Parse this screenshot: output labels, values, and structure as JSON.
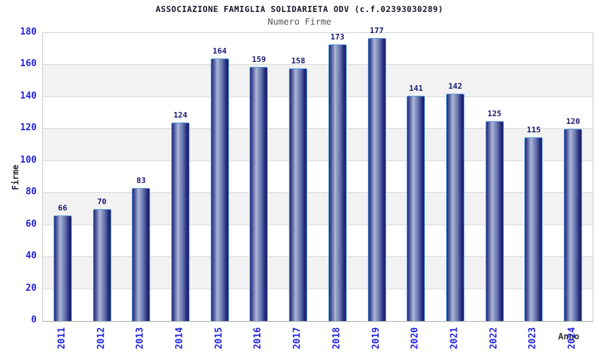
{
  "chart_data": {
    "type": "bar",
    "title": "ASSOCIAZIONE FAMIGLIA SOLIDARIETA ODV (c.f.02393030289)",
    "subtitle": "Numero Firme",
    "xlabel": "Anno",
    "ylabel": "Firme",
    "categories": [
      "2011",
      "2012",
      "2013",
      "2014",
      "2015",
      "2016",
      "2017",
      "2018",
      "2019",
      "2020",
      "2021",
      "2022",
      "2023",
      "2024"
    ],
    "values": [
      66,
      70,
      83,
      124,
      164,
      159,
      158,
      173,
      177,
      141,
      142,
      125,
      115,
      120
    ],
    "ylim": [
      0,
      180
    ],
    "ytick_step": 20,
    "grid": true,
    "legend": "none",
    "colors": {
      "title": "#15152a",
      "subtitle": "#555555",
      "tick_label": "#2222dd",
      "value_label": "#191975",
      "axis_label": "#26263a",
      "xlabel_text": "#333333",
      "bar_dark": "#232a7e",
      "bar_mid": "#6d7ab0",
      "bar_light": "#aeb8da",
      "bar_edge": "#5b9ee0",
      "band_gray": "#f2f2f2",
      "band_white": "#ffffff",
      "gridline": "#d9d9d9",
      "plot_border": "#cccccc"
    }
  }
}
